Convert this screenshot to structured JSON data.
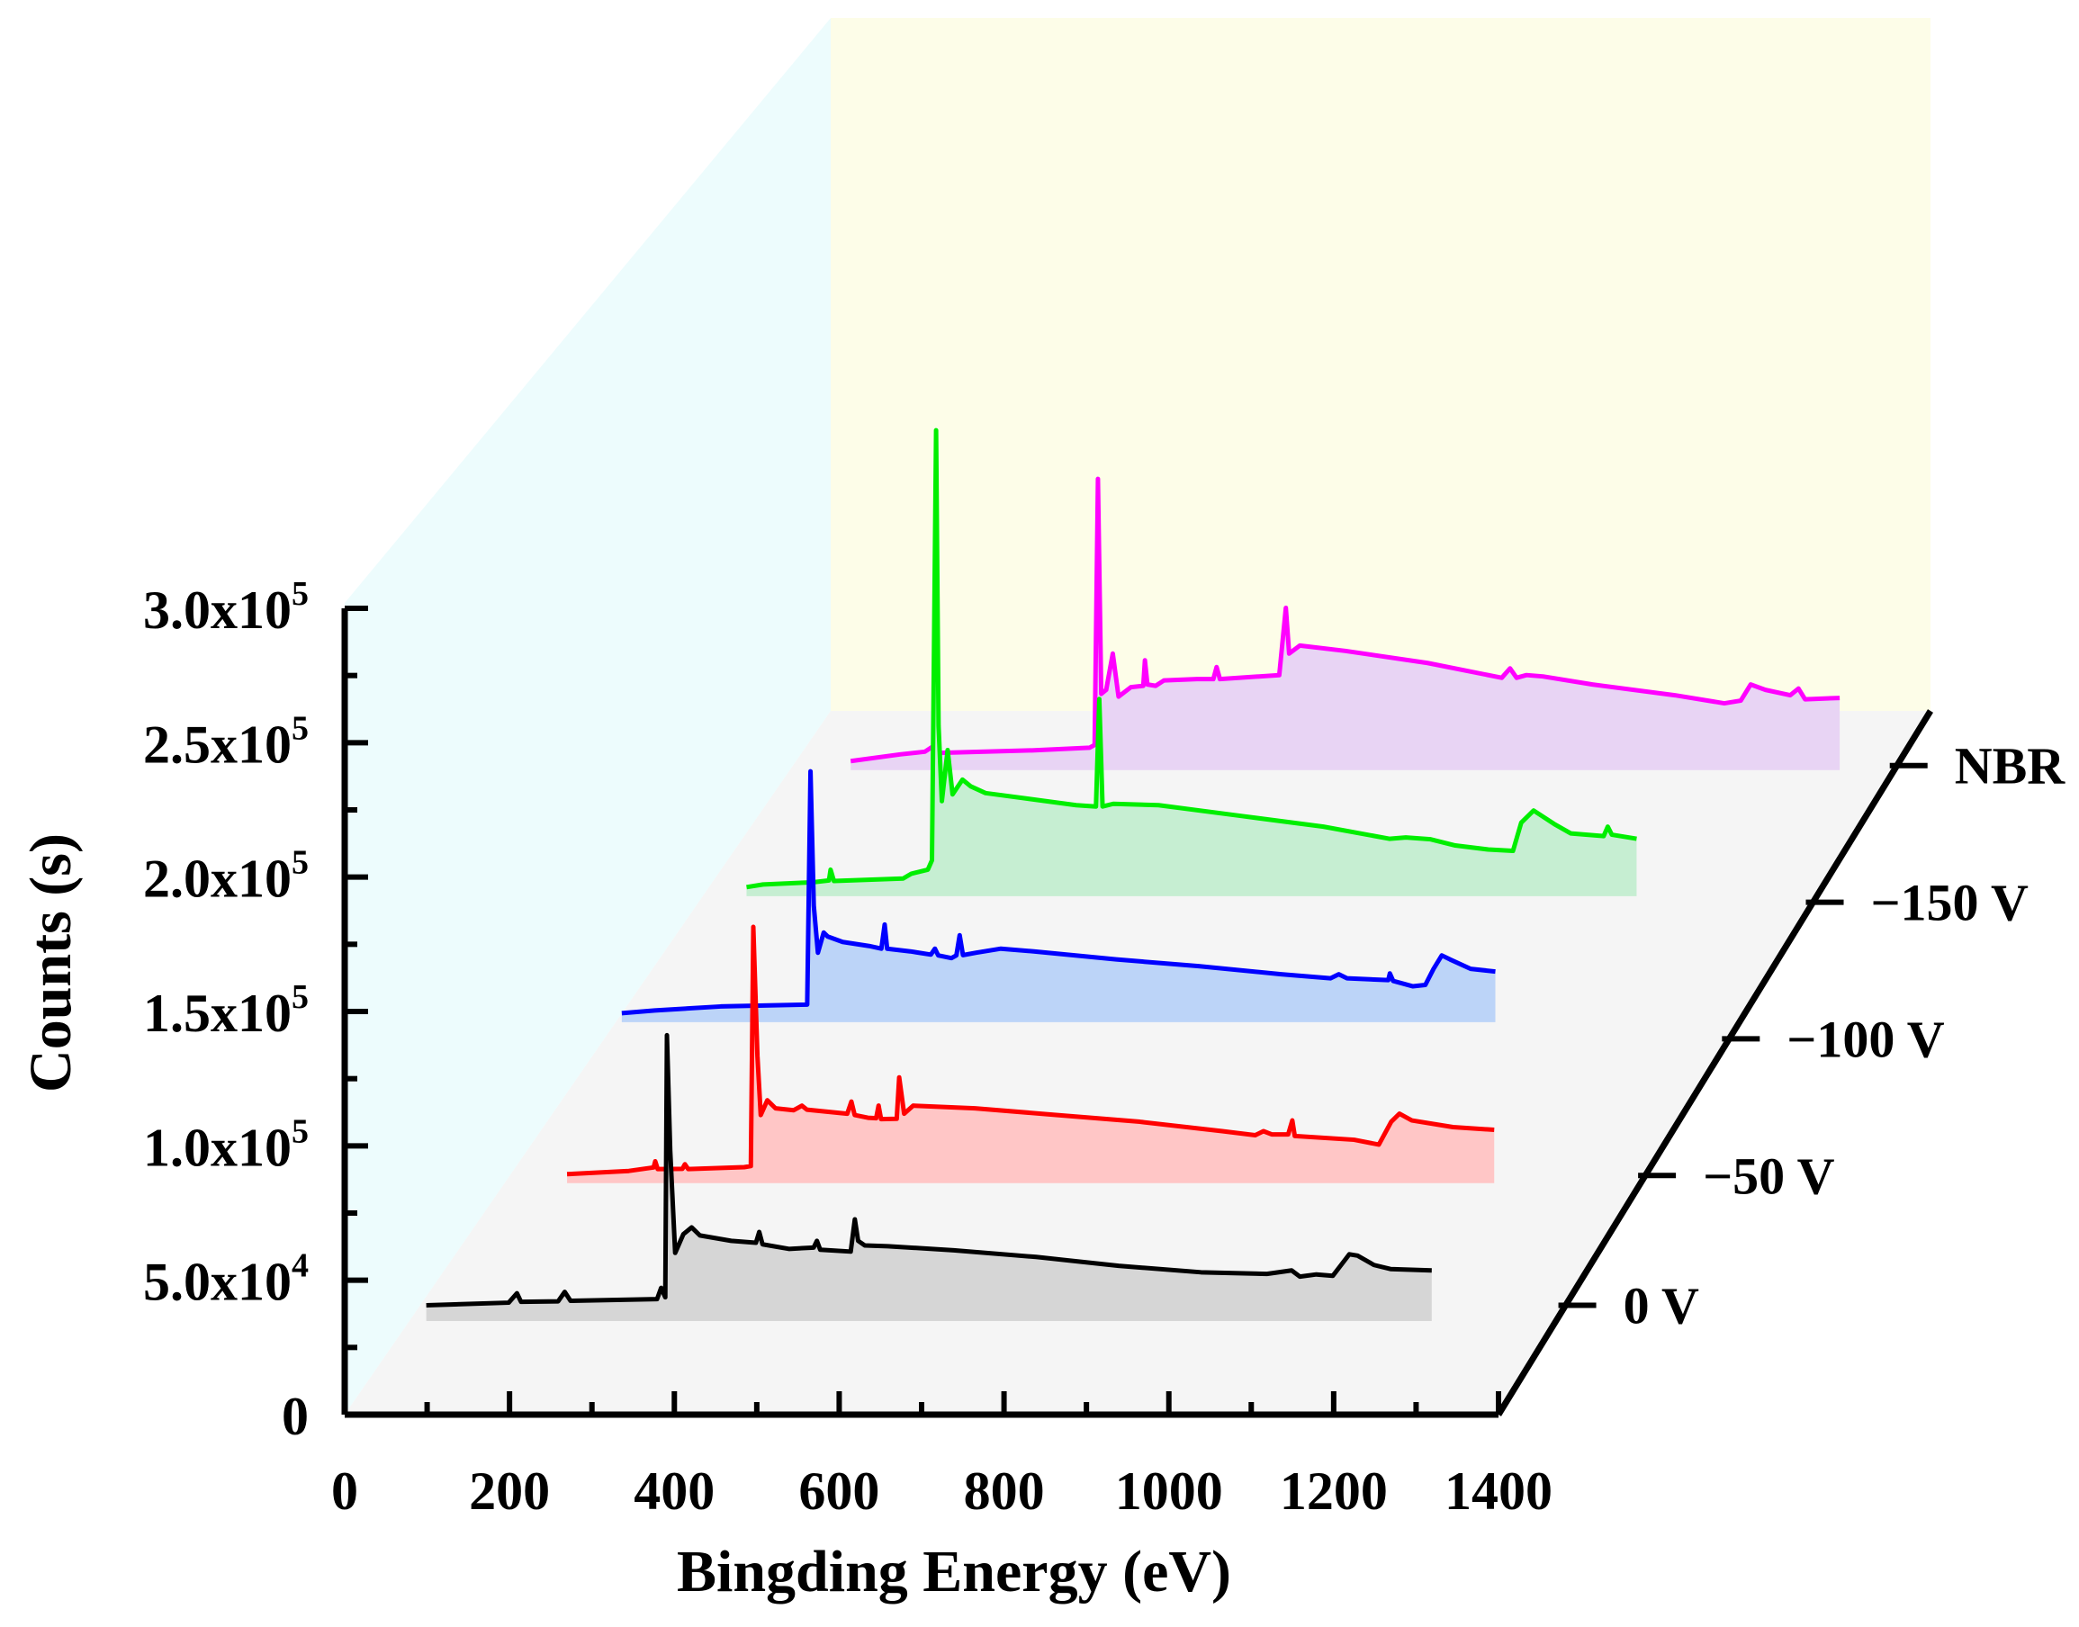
{
  "chart_data": {
    "type": "line",
    "subtype": "3d-waterfall-xps-survey",
    "xlabel": "Bingding Energy (eV)",
    "ylabel": "Counts (s)",
    "xlim": [
      0,
      1400
    ],
    "ylim": [
      0,
      300000
    ],
    "x_ticks": [
      "0",
      "200",
      "400",
      "600",
      "800",
      "1000",
      "1200",
      "1400"
    ],
    "y_ticks": [
      {
        "mantissa": "0",
        "exponent": ""
      },
      {
        "mantissa": "5.0x10",
        "exponent": "4"
      },
      {
        "mantissa": "1.0x10",
        "exponent": "5"
      },
      {
        "mantissa": "1.5x10",
        "exponent": "5"
      },
      {
        "mantissa": "2.0x10",
        "exponent": "5"
      },
      {
        "mantissa": "2.5x10",
        "exponent": "5"
      },
      {
        "mantissa": "3.0x10",
        "exponent": "5"
      }
    ],
    "grid": false,
    "series": [
      {
        "name": "0 V",
        "color": "#000000",
        "fill": "#d6d6d6",
        "points": [
          [
            60,
            2500
          ],
          [
            160,
            3500
          ],
          [
            170,
            7000
          ],
          [
            175,
            3800
          ],
          [
            220,
            4000
          ],
          [
            228,
            7500
          ],
          [
            235,
            4200
          ],
          [
            340,
            4800
          ],
          [
            345,
            9000
          ],
          [
            350,
            5500
          ],
          [
            352,
            103000
          ],
          [
            356,
            60000
          ],
          [
            362,
            22000
          ],
          [
            372,
            29000
          ],
          [
            382,
            31500
          ],
          [
            392,
            28500
          ],
          [
            430,
            26500
          ],
          [
            460,
            25800
          ],
          [
            464,
            29800
          ],
          [
            468,
            25200
          ],
          [
            500,
            23500
          ],
          [
            530,
            24000
          ],
          [
            534,
            26500
          ],
          [
            538,
            23200
          ],
          [
            575,
            22500
          ],
          [
            580,
            34500
          ],
          [
            584,
            26500
          ],
          [
            592,
            24800
          ],
          [
            620,
            24500
          ],
          [
            700,
            23000
          ],
          [
            800,
            20500
          ],
          [
            900,
            17200
          ],
          [
            1000,
            14800
          ],
          [
            1080,
            14200
          ],
          [
            1110,
            15500
          ],
          [
            1120,
            13200
          ],
          [
            1140,
            14000
          ],
          [
            1160,
            13500
          ],
          [
            1170,
            17500
          ],
          [
            1180,
            21500
          ],
          [
            1190,
            21000
          ],
          [
            1210,
            17500
          ],
          [
            1230,
            16000
          ],
          [
            1280,
            15500
          ]
        ]
      },
      {
        "name": "−50 V",
        "color": "#ff0000",
        "fill": "#ffc6c6",
        "points": [
          [
            5,
            0
          ],
          [
            80,
            1200
          ],
          [
            110,
            2500
          ],
          [
            112,
            4800
          ],
          [
            115,
            1900
          ],
          [
            145,
            2000
          ],
          [
            148,
            3700
          ],
          [
            152,
            1900
          ],
          [
            220,
            2600
          ],
          [
            228,
            3000
          ],
          [
            231,
            92000
          ],
          [
            236,
            44000
          ],
          [
            240,
            22000
          ],
          [
            248,
            27500
          ],
          [
            258,
            24500
          ],
          [
            280,
            23800
          ],
          [
            290,
            25500
          ],
          [
            296,
            24000
          ],
          [
            345,
            22500
          ],
          [
            350,
            27000
          ],
          [
            354,
            22000
          ],
          [
            370,
            21000
          ],
          [
            380,
            20800
          ],
          [
            383,
            25500
          ],
          [
            386,
            20500
          ],
          [
            405,
            20600
          ],
          [
            408,
            36000
          ],
          [
            414,
            22500
          ],
          [
            425,
            25500
          ],
          [
            500,
            24500
          ],
          [
            600,
            22000
          ],
          [
            700,
            19500
          ],
          [
            800,
            16000
          ],
          [
            840,
            14500
          ],
          [
            850,
            16000
          ],
          [
            860,
            14800
          ],
          [
            880,
            14800
          ],
          [
            885,
            20000
          ],
          [
            888,
            14200
          ],
          [
            960,
            12800
          ],
          [
            990,
            11000
          ],
          [
            1005,
            19500
          ],
          [
            1015,
            22500
          ],
          [
            1030,
            20000
          ],
          [
            1080,
            17500
          ],
          [
            1130,
            16500
          ]
        ]
      },
      {
        "name": "−100 V",
        "color": "#0000ff",
        "fill": "#bcd4f8",
        "points": [
          [
            0,
            0
          ],
          [
            40,
            1000
          ],
          [
            120,
            2500
          ],
          [
            225,
            3200
          ],
          [
            229,
            90000
          ],
          [
            233,
            40000
          ],
          [
            238,
            22500
          ],
          [
            245,
            30000
          ],
          [
            250,
            28500
          ],
          [
            268,
            26500
          ],
          [
            300,
            25000
          ],
          [
            315,
            24000
          ],
          [
            319,
            33000
          ],
          [
            322,
            24000
          ],
          [
            350,
            23000
          ],
          [
            375,
            21800
          ],
          [
            380,
            24000
          ],
          [
            384,
            21500
          ],
          [
            400,
            20500
          ],
          [
            406,
            21500
          ],
          [
            410,
            29000
          ],
          [
            414,
            21600
          ],
          [
            430,
            22500
          ],
          [
            460,
            24000
          ],
          [
            500,
            23000
          ],
          [
            600,
            20000
          ],
          [
            700,
            17500
          ],
          [
            800,
            14500
          ],
          [
            860,
            13000
          ],
          [
            870,
            14500
          ],
          [
            880,
            13000
          ],
          [
            930,
            12300
          ],
          [
            932,
            14800
          ],
          [
            936,
            12000
          ],
          [
            960,
            10000
          ],
          [
            975,
            10500
          ],
          [
            985,
            16500
          ],
          [
            995,
            21500
          ],
          [
            1005,
            20000
          ],
          [
            1030,
            16500
          ],
          [
            1060,
            15500
          ]
        ]
      },
      {
        "name": "−150 V",
        "color": "#00ee00",
        "fill": "#c6eed2",
        "points": [
          [
            0,
            0
          ],
          [
            20,
            1000
          ],
          [
            80,
            1800
          ],
          [
            100,
            2500
          ],
          [
            102,
            6500
          ],
          [
            106,
            2300
          ],
          [
            190,
            3200
          ],
          [
            200,
            5000
          ],
          [
            220,
            6500
          ],
          [
            225,
            10000
          ],
          [
            230,
            170000
          ],
          [
            233,
            60000
          ],
          [
            237,
            32000
          ],
          [
            244,
            51000
          ],
          [
            250,
            34500
          ],
          [
            262,
            40000
          ],
          [
            272,
            37500
          ],
          [
            290,
            35000
          ],
          [
            400,
            30500
          ],
          [
            424,
            30000
          ],
          [
            428,
            70000
          ],
          [
            432,
            30000
          ],
          [
            445,
            31000
          ],
          [
            500,
            30500
          ],
          [
            600,
            26500
          ],
          [
            700,
            22500
          ],
          [
            780,
            18000
          ],
          [
            800,
            18500
          ],
          [
            830,
            17800
          ],
          [
            860,
            15500
          ],
          [
            900,
            14000
          ],
          [
            930,
            13500
          ],
          [
            940,
            24000
          ],
          [
            955,
            28500
          ],
          [
            980,
            23500
          ],
          [
            1000,
            20000
          ],
          [
            1040,
            19000
          ],
          [
            1045,
            22500
          ],
          [
            1050,
            19500
          ],
          [
            1080,
            18000
          ]
        ]
      },
      {
        "name": "NBR",
        "color": "#ff00ff",
        "fill": "#e8d4f4",
        "points": [
          [
            0,
            0
          ],
          [
            60,
            2500
          ],
          [
            90,
            3500
          ],
          [
            100,
            5500
          ],
          [
            104,
            3000
          ],
          [
            220,
            4000
          ],
          [
            290,
            5000
          ],
          [
            296,
            6000
          ],
          [
            300,
            105000
          ],
          [
            304,
            25000
          ],
          [
            310,
            26500
          ],
          [
            318,
            40000
          ],
          [
            325,
            24000
          ],
          [
            340,
            27500
          ],
          [
            355,
            28000
          ],
          [
            357,
            37500
          ],
          [
            360,
            28500
          ],
          [
            370,
            28000
          ],
          [
            380,
            30000
          ],
          [
            420,
            30500
          ],
          [
            440,
            30500
          ],
          [
            444,
            35000
          ],
          [
            448,
            30500
          ],
          [
            520,
            32000
          ],
          [
            528,
            57000
          ],
          [
            532,
            40000
          ],
          [
            545,
            43000
          ],
          [
            600,
            41000
          ],
          [
            700,
            36500
          ],
          [
            790,
            31000
          ],
          [
            800,
            34500
          ],
          [
            808,
            31000
          ],
          [
            820,
            32000
          ],
          [
            840,
            31500
          ],
          [
            900,
            28500
          ],
          [
            1000,
            24500
          ],
          [
            1060,
            21500
          ],
          [
            1080,
            22500
          ],
          [
            1092,
            28500
          ],
          [
            1110,
            26500
          ],
          [
            1140,
            24500
          ],
          [
            1150,
            27000
          ],
          [
            1158,
            23000
          ],
          [
            1200,
            23500
          ]
        ]
      }
    ]
  }
}
